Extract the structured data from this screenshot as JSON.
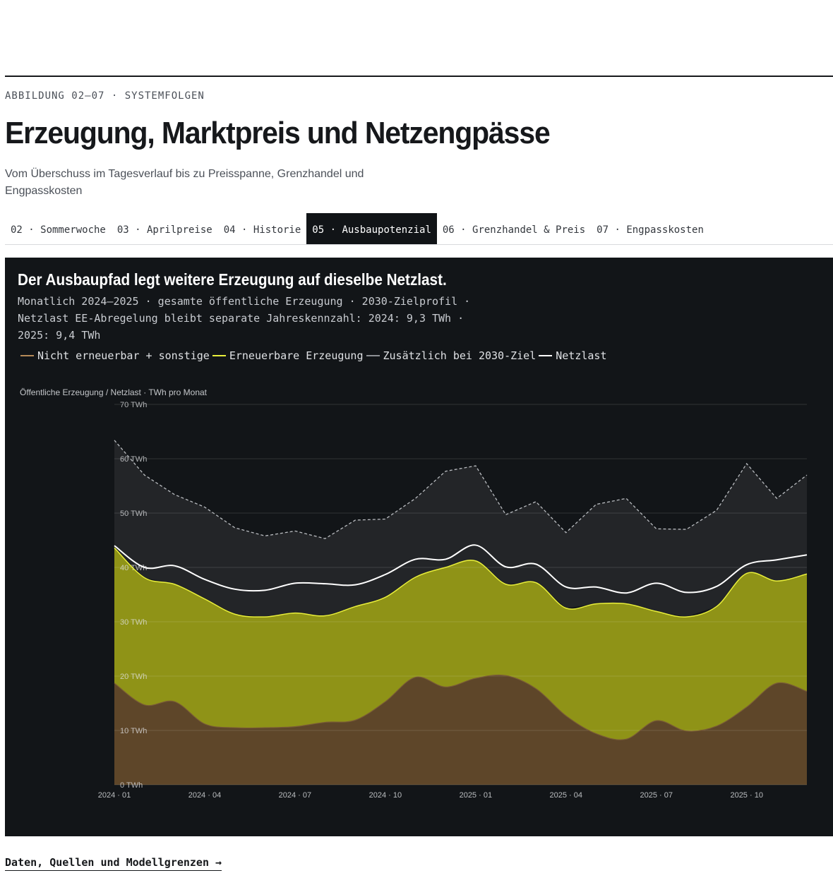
{
  "header": {
    "kicker": "ABBILDUNG 02–07 · SYSTEMFOLGEN",
    "title": "Erzeugung, Marktpreis und Netzengpässe",
    "subtitle": "Vom Überschuss im Tagesverlauf bis zu Preisspanne, Grenzhandel und Engpasskosten"
  },
  "tabs": [
    {
      "label": "02 · Sommerwoche",
      "active": false
    },
    {
      "label": "03 · Aprilpreise",
      "active": false
    },
    {
      "label": "04 · Historie",
      "active": false
    },
    {
      "label": "05 · Ausbaupotenzial",
      "active": true
    },
    {
      "label": "06 · Grenzhandel & Preis",
      "active": false
    },
    {
      "label": "07 · Engpasskosten",
      "active": false
    }
  ],
  "panel": {
    "title": "Der Ausbaupfad legt weitere Erzeugung auf dieselbe Netzlast.",
    "description": "Monatlich 2024–2025 · gesamte öffentliche Erzeugung · 2030-Zielprofil · Netzlast EE-Abregelung bleibt separate Jahreskennzahl: 2024: 9,3 TWh · 2025: 9,4 TWh"
  },
  "footer": {
    "link_label": "Daten, Quellen und Modellgrenzen →"
  },
  "colors": {
    "background": "#121518",
    "nonrenewable": "#5e4629",
    "nonrenewable_line": "#7a5c36",
    "renewable": "#8f9317",
    "renewable_line": "#e9ef3a",
    "target_area": "#232528",
    "target_line": "#b9bcc0",
    "load_line": "#ffffff",
    "legend_nonrenewable": "#b58a58",
    "legend_renewable": "#e9ef3a",
    "legend_target": "#8d9095",
    "legend_load": "#ffffff"
  },
  "chart_data": {
    "type": "area",
    "ylabel": "Öffentliche Erzeugung / Netzlast · TWh pro Monat",
    "ylim": [
      0,
      70
    ],
    "yticks": [
      0,
      10,
      20,
      30,
      40,
      50,
      60,
      70
    ],
    "ytick_labels": [
      "0 TWh",
      "10 TWh",
      "20 TWh",
      "30 TWh",
      "40 TWh",
      "50 TWh",
      "60 TWh",
      "70 TWh"
    ],
    "x": [
      "2024-01",
      "2024-02",
      "2024-03",
      "2024-04",
      "2024-05",
      "2024-06",
      "2024-07",
      "2024-08",
      "2024-09",
      "2024-10",
      "2024-11",
      "2024-12",
      "2025-01",
      "2025-02",
      "2025-03",
      "2025-04",
      "2025-05",
      "2025-06",
      "2025-07",
      "2025-08",
      "2025-09",
      "2025-10",
      "2025-11",
      "2025-12"
    ],
    "xtick_indices": [
      0,
      3,
      6,
      9,
      12,
      15,
      18,
      21
    ],
    "xtick_labels": [
      "2024 · 01",
      "2024 · 04",
      "2024 · 07",
      "2024 · 10",
      "2025 · 01",
      "2025 · 04",
      "2025 · 07",
      "2025 · 10"
    ],
    "grid": true,
    "legend_position": "top-left",
    "series": [
      {
        "name": "Nicht erneuerbar + sonstige",
        "key": "nonrenewable",
        "values": [
          18.7,
          14.7,
          15.3,
          11.2,
          10.5,
          10.5,
          10.7,
          11.5,
          11.9,
          15.3,
          19.8,
          18.0,
          19.6,
          20.1,
          17.7,
          12.7,
          9.4,
          8.4,
          11.8,
          9.9,
          10.8,
          14.3,
          18.7,
          17.2
        ]
      },
      {
        "name": "Erneuerbare Erzeugung",
        "key": "renewable_total",
        "values": [
          43.6,
          38.1,
          36.9,
          34.2,
          31.4,
          30.9,
          31.6,
          31.1,
          32.8,
          34.5,
          38.2,
          40.0,
          41.2,
          36.9,
          37.2,
          32.5,
          33.3,
          33.3,
          31.9,
          30.9,
          32.8,
          38.9,
          37.5,
          38.8
        ]
      },
      {
        "name": "Zusätzlich bei 2030-Ziel",
        "key": "target_total",
        "values": [
          63.4,
          57.0,
          53.4,
          51.1,
          47.3,
          45.8,
          46.7,
          45.3,
          48.7,
          48.9,
          52.7,
          57.7,
          58.7,
          49.7,
          52.1,
          46.4,
          51.6,
          52.7,
          47.1,
          47.0,
          50.5,
          59.1,
          52.7,
          57.0
        ]
      },
      {
        "name": "Netzlast",
        "key": "load",
        "values": [
          44.0,
          40.0,
          40.3,
          37.8,
          36.0,
          35.8,
          37.1,
          37.0,
          36.8,
          38.7,
          41.5,
          41.5,
          44.1,
          40.1,
          40.6,
          36.4,
          36.4,
          35.3,
          37.1,
          35.4,
          36.5,
          40.5,
          41.4,
          42.3
        ]
      }
    ]
  }
}
